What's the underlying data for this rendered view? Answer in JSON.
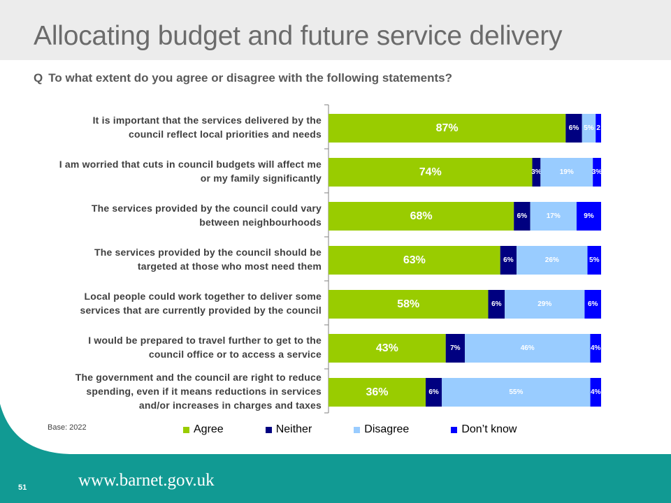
{
  "slide": {
    "title": "Allocating budget and future service delivery",
    "question_prefix": "Q",
    "question": "To what extent do you agree or disagree with the following statements?",
    "base": "Base: 2022",
    "page_number": "51",
    "url": "www.barnet.gov.uk"
  },
  "colors": {
    "agree": "#99cc00",
    "neither": "#000080",
    "disagree": "#99ccff",
    "dont_know": "#0000ff",
    "footer_teal": "#119a93"
  },
  "chart_data": {
    "type": "bar",
    "orientation": "horizontal",
    "stacked": true,
    "xlim": [
      0,
      100
    ],
    "legend_position": "bottom",
    "categories": [
      [
        "It is important that the services delivered by the",
        "council reflect local priorities and needs"
      ],
      [
        "I am worried that cuts in council budgets will affect me",
        "or my family significantly"
      ],
      [
        "The services provided by the council could vary",
        "between neighbourhoods"
      ],
      [
        "The services provided by the council should be",
        "targeted at those who most need them"
      ],
      [
        "Local people could work together to deliver some",
        "services that are currently provided by the council"
      ],
      [
        "I would be prepared to travel further to get to the",
        "council office or to access a service"
      ],
      [
        "The government and the council are right to reduce",
        "spending, even if it means reductions in services",
        "and/or increases in charges and taxes"
      ]
    ],
    "series": [
      {
        "name": "Agree",
        "values": [
          87,
          74,
          68,
          63,
          58,
          43,
          36
        ],
        "labels": [
          "87%",
          "74%",
          "68%",
          "63%",
          "58%",
          "43%",
          "36%"
        ]
      },
      {
        "name": "Neither",
        "values": [
          6,
          3,
          6,
          6,
          6,
          7,
          6
        ],
        "labels": [
          "6%",
          "3%",
          "6%",
          "6%",
          "6%",
          "7%",
          "6%"
        ]
      },
      {
        "name": "Disagree",
        "values": [
          5,
          19,
          17,
          26,
          29,
          46,
          55
        ],
        "labels": [
          "5%",
          "19%",
          "17%",
          "26%",
          "29%",
          "46%",
          "55%"
        ]
      },
      {
        "name": "Don’t know",
        "values": [
          2,
          3,
          9,
          5,
          6,
          4,
          4
        ],
        "labels": [
          "2",
          "3%",
          "9%",
          "5%",
          "6%",
          "4%",
          "4%"
        ]
      }
    ]
  }
}
